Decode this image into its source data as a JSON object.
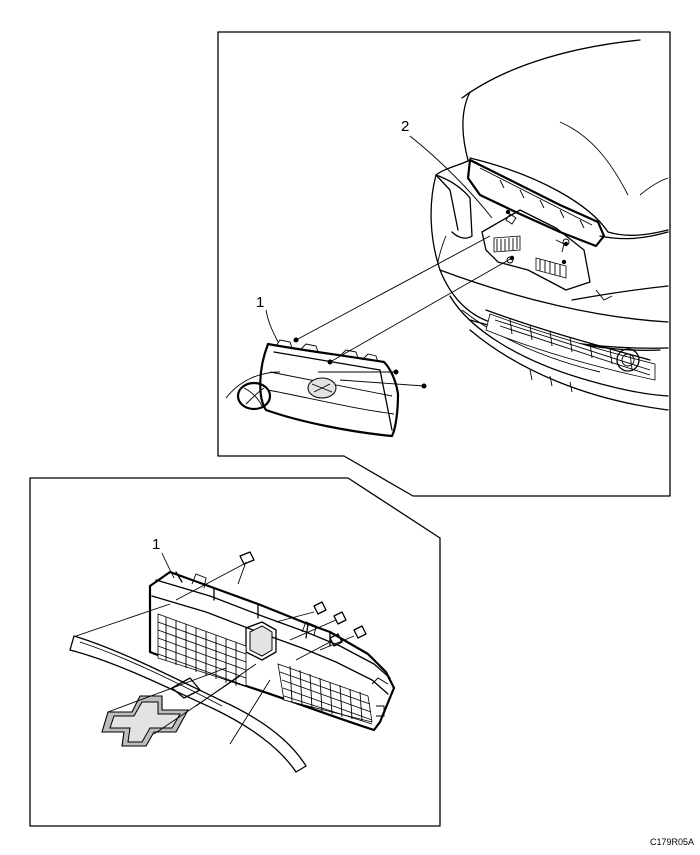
{
  "callouts": {
    "upper_grille": "1",
    "upper_bracket": "2",
    "lower_grille": "1"
  },
  "figure_code": "C179R05A"
}
